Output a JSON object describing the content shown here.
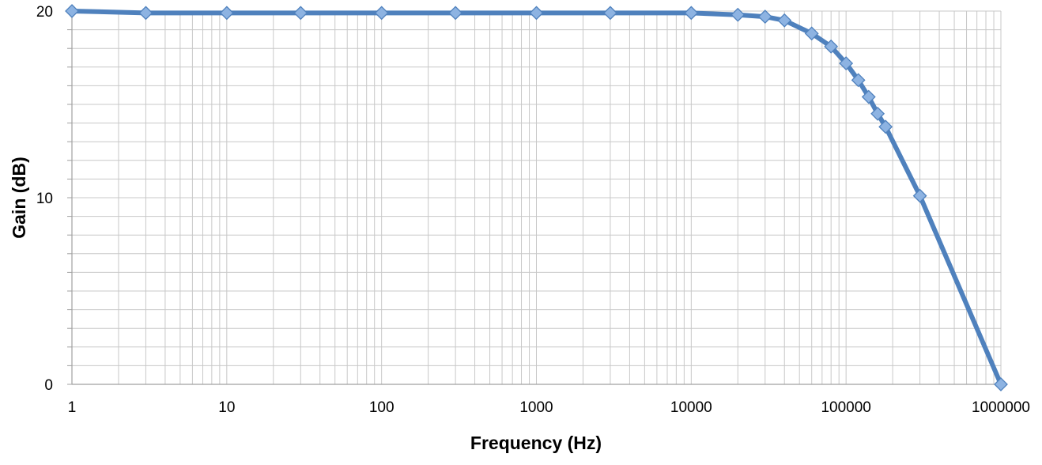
{
  "chart_data": {
    "type": "line",
    "title": "",
    "xlabel": "Frequency (Hz)",
    "ylabel": "Gain (dB)",
    "x_scale": "log",
    "xlim": [
      1,
      1000000
    ],
    "ylim": [
      0,
      20
    ],
    "x_ticks": [
      1,
      10,
      100,
      1000,
      10000,
      100000,
      1000000
    ],
    "x_tick_labels": [
      "1",
      "10",
      "100",
      "1000",
      "10000",
      "100000",
      "1000000"
    ],
    "y_ticks": [
      0,
      10,
      20
    ],
    "y_tick_labels": [
      "0",
      "10",
      "20"
    ],
    "grid": true,
    "legend": "none",
    "colors": {
      "series": "#4f81bd",
      "marker_fill": "#8db3e2",
      "grid": "#c8c8c8",
      "axis": "#a0a0a0"
    },
    "series": [
      {
        "marker": "diamond",
        "x": [
          1,
          3,
          10,
          30,
          100,
          300,
          1000,
          3000,
          10000,
          20000,
          30000,
          40000,
          60000,
          80000,
          100000,
          120000,
          140000,
          160000,
          180000,
          300000,
          1000000
        ],
        "y": [
          20.0,
          19.9,
          19.9,
          19.9,
          19.9,
          19.9,
          19.9,
          19.9,
          19.9,
          19.8,
          19.7,
          19.5,
          18.8,
          18.1,
          17.2,
          16.3,
          15.4,
          14.5,
          13.8,
          10.1,
          0.0
        ]
      }
    ]
  }
}
